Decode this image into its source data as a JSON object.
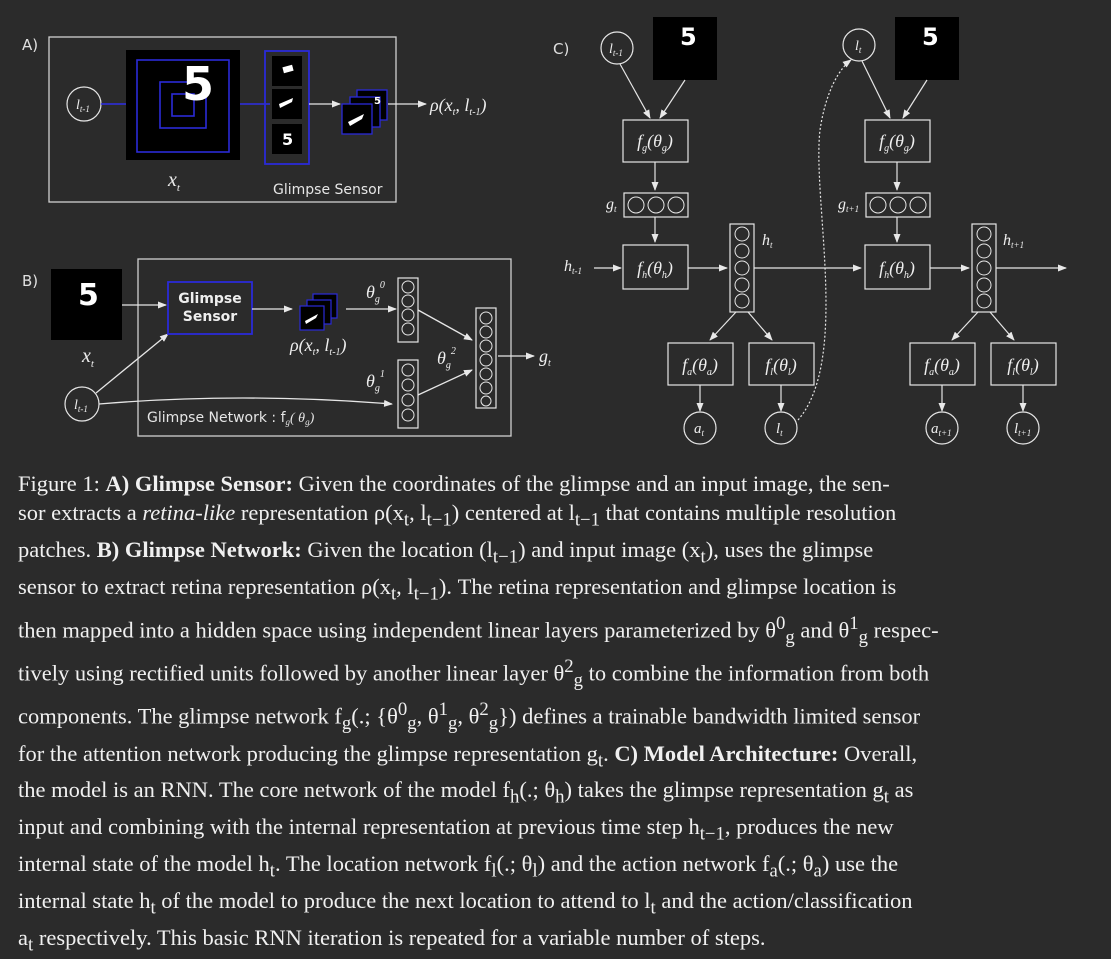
{
  "panels": {
    "a_label": "A)",
    "b_label": "B)",
    "c_label": "C)"
  },
  "sensor": {
    "loc_in": "l",
    "loc_in_sub": "t-1",
    "image_label": "x",
    "image_label_sub": "t",
    "box_title": "Glimpse Sensor",
    "output_label": "ρ(x",
    "output_sub_t": "t",
    "output_mid": ", l",
    "output_sub_t1": "t-1",
    "output_end": ")",
    "digit": "5"
  },
  "network": {
    "image_label": "x",
    "image_label_sub": "t",
    "loc_in": "l",
    "loc_in_sub": "t-1",
    "sensor_line1": "Glimpse",
    "sensor_line2": "Sensor",
    "rho_label": "ρ(x",
    "rho_sub_t": "t",
    "rho_mid": ", l",
    "rho_sub_t1": "t-1",
    "rho_end": ")",
    "theta0": "θ",
    "theta0_sub": "g",
    "theta0_sup": "0",
    "theta1": "θ",
    "theta1_sub": "g",
    "theta1_sup": "1",
    "theta2": "θ",
    "theta2_sub": "g",
    "theta2_sup": "2",
    "output": "g",
    "output_sub": "t",
    "box_title": "Glimpse Network : f",
    "box_title_sub": "g",
    "box_title_arg": "( θ",
    "box_title_arg_sub": "g",
    "box_title_end": ")",
    "digit": "5"
  },
  "architecture": {
    "l_prev": "l",
    "l_prev_sub": "t-1",
    "l_cur": "l",
    "l_cur_sub": "t",
    "fg": "f",
    "fg_sub": "g",
    "fg_arg": "(θ",
    "fg_arg_sub": "g",
    "fg_end": ")",
    "g_t": "g",
    "g_t_sub": "t",
    "g_t1": "g",
    "g_t1_sub": "t+1",
    "h_prev": "h",
    "h_prev_sub": "t-1",
    "fh": "f",
    "fh_sub": "h",
    "fh_arg": "(θ",
    "fh_arg_sub": "h",
    "fh_end": ")",
    "h_t": "h",
    "h_t_sub": "t",
    "h_t1": "h",
    "h_t1_sub": "t+1",
    "fa": "f",
    "fa_sub": "a",
    "fa_arg": "(θ",
    "fa_arg_sub": "a",
    "fa_end": ")",
    "fl": "f",
    "fl_sub": "l",
    "fl_arg": "(θ",
    "fl_arg_sub": "l",
    "fl_end": ")",
    "a_t": "a",
    "a_t_sub": "t",
    "l_out": "l",
    "l_out_sub": "t",
    "a_t1": "a",
    "a_t1_sub": "t+1",
    "l_t1": "l",
    "l_t1_sub": "t+1",
    "digit": "5"
  },
  "caption": {
    "l1a": "Figure 1: ",
    "l1b": "A) Glimpse Sensor:",
    "l1c": " Given the coordinates of the glimpse and an input image, the sen-",
    "l2a": "sor extracts a ",
    "l2b": "retina-like",
    "l2c": " representation ρ(x",
    "l2d": "t",
    "l2e": ", l",
    "l2f": "t−1",
    "l2g": ") centered at l",
    "l2h": "t−1",
    "l2i": " that contains multiple resolution",
    "l3a": "patches. ",
    "l3b": "B) Glimpse Network:",
    "l3c": " Given the location (l",
    "l3d": "t−1",
    "l3e": ") and input image (x",
    "l3f": "t",
    "l3g": "), uses the glimpse",
    "l4a": "sensor to extract retina representation ρ(x",
    "l4b": "t",
    "l4c": ", l",
    "l4d": "t−1",
    "l4e": "). The retina representation and glimpse location is",
    "l5a": "then mapped into a hidden space using independent linear layers parameterized by θ",
    "l5b": "0",
    "l5c": "g",
    "l5d": " and θ",
    "l5e": "1",
    "l5f": "g",
    "l5g": " respec-",
    "l6a": "tively using rectified units followed by another linear layer θ",
    "l6b": "2",
    "l6c": "g",
    "l6d": " to combine the information from both",
    "l7a": "components. The glimpse network f",
    "l7b": "g",
    "l7c": "(.; {θ",
    "l7d": "0",
    "l7e": "g",
    "l7f": ", θ",
    "l7g": "1",
    "l7h": "g",
    "l7i": ", θ",
    "l7j": "2",
    "l7k": "g",
    "l7l": "}) defines a trainable bandwidth limited sensor",
    "l8a": "for the attention network producing the glimpse representation g",
    "l8b": "t",
    "l8c": ". ",
    "l8d": "C) Model Architecture:",
    "l8e": " Overall,",
    "l9a": "the model is an RNN. The core network of the model f",
    "l9b": "h",
    "l9c": "(.; θ",
    "l9d": "h",
    "l9e": ") takes the glimpse representation g",
    "l9f": "t",
    "l9g": " as",
    "l10a": "input and combining with the internal representation at previous time step h",
    "l10b": "t−1",
    "l10c": ", produces the new",
    "l11a": "internal state of the model h",
    "l11b": "t",
    "l11c": ". The location network f",
    "l11d": "l",
    "l11e": "(.; θ",
    "l11f": "l",
    "l11g": ") and the action network f",
    "l11h": "a",
    "l11i": "(.; θ",
    "l11j": "a",
    "l11k": ") use the",
    "l12a": "internal state h",
    "l12b": "t",
    "l12c": " of the model to produce the next location to attend to l",
    "l12d": "t",
    "l12e": " and the action/classification",
    "l13a": "a",
    "l13b": "t",
    "l13c": " respectively. This basic RNN iteration is repeated for a variable number of steps."
  }
}
